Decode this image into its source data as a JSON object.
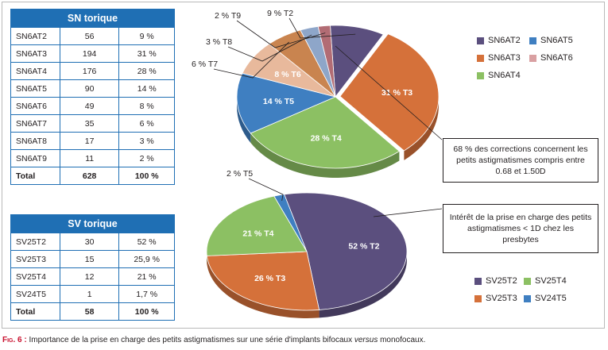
{
  "sn_table": {
    "title": "SN torique",
    "rows": [
      [
        "SN6AT2",
        "56",
        "9 %"
      ],
      [
        "SN6AT3",
        "194",
        "31 %"
      ],
      [
        "SN6AT4",
        "176",
        "28 %"
      ],
      [
        "SN6AT5",
        "90",
        "14 %"
      ],
      [
        "SN6AT6",
        "49",
        "8 %"
      ],
      [
        "SN6AT7",
        "35",
        "6 %"
      ],
      [
        "SN6AT8",
        "17",
        "3 %"
      ],
      [
        "SN6AT9",
        "11",
        "2 %"
      ]
    ],
    "total": [
      "Total",
      "628",
      "100 %"
    ]
  },
  "sv_table": {
    "title": "SV torique",
    "rows": [
      [
        "SV25T2",
        "30",
        "52 %"
      ],
      [
        "SV25T3",
        "15",
        "25,9 %"
      ],
      [
        "SV25T4",
        "12",
        "21 %"
      ],
      [
        "SV24T5",
        "1",
        "1,7 %"
      ]
    ],
    "total": [
      "Total",
      "58",
      "100 %"
    ]
  },
  "notes": {
    "top": "68 % des corrections concernent les petits astigmatismes compris entre 0.68 et 1.50D",
    "bottom": "Intérêt de la prise en charge des petits astigmatismes < 1D chez les presbytes"
  },
  "caption": {
    "fig": "Fig. 6 :",
    "text_before": " Importance de la prise en charge des petits astigmatismes sur une série d'implants bifocaux ",
    "emph": "versus",
    "text_after": " monofocaux."
  },
  "chart_data": [
    {
      "type": "pie",
      "slices": [
        {
          "name": "T2",
          "value": 9,
          "label": "9 % T2",
          "color": "#5b4f7e"
        },
        {
          "name": "T3",
          "value": 31,
          "label": "31 % T3",
          "color": "#d5713a"
        },
        {
          "name": "T4",
          "value": 28,
          "label": "28 % T4",
          "color": "#8cc063"
        },
        {
          "name": "T5",
          "value": 14,
          "label": "14 % T5",
          "color": "#3f7fc1"
        },
        {
          "name": "T6",
          "value": 8,
          "label": "8 % T6",
          "color": "#e8b99c"
        },
        {
          "name": "T7",
          "value": 6,
          "label": "6 % T7",
          "color": "#c9844f"
        },
        {
          "name": "T8",
          "value": 3,
          "label": "3 % T8",
          "color": "#8ea6c9"
        },
        {
          "name": "T9",
          "value": 2,
          "label": "2 % T9",
          "color": "#b26c74"
        }
      ],
      "legend": [
        {
          "label": "SN6AT2",
          "color": "#5b4f7e"
        },
        {
          "label": "SN6AT5",
          "color": "#3f7fc1"
        },
        {
          "label": "SN6AT3",
          "color": "#d5713a"
        },
        {
          "label": "SN6AT6",
          "color": "#d9a0a2"
        },
        {
          "label": "SN6AT4",
          "color": "#8cc063"
        }
      ]
    },
    {
      "type": "pie",
      "slices": [
        {
          "name": "T2",
          "value": 52,
          "label": "52 % T2",
          "color": "#5b4f7e"
        },
        {
          "name": "T3",
          "value": 26,
          "label": "26 % T3",
          "color": "#d5713a"
        },
        {
          "name": "T4",
          "value": 21,
          "label": "21 % T4",
          "color": "#8cc063"
        },
        {
          "name": "T5",
          "value": 1.7,
          "label": "2 % T5",
          "color": "#3f7fc1"
        }
      ],
      "legend": [
        {
          "label": "SV25T2",
          "color": "#5b4f7e"
        },
        {
          "label": "SV25T4",
          "color": "#8cc063"
        },
        {
          "label": "SV25T3",
          "color": "#d5713a"
        },
        {
          "label": "SV24T5",
          "color": "#3f7fc1"
        }
      ]
    }
  ]
}
